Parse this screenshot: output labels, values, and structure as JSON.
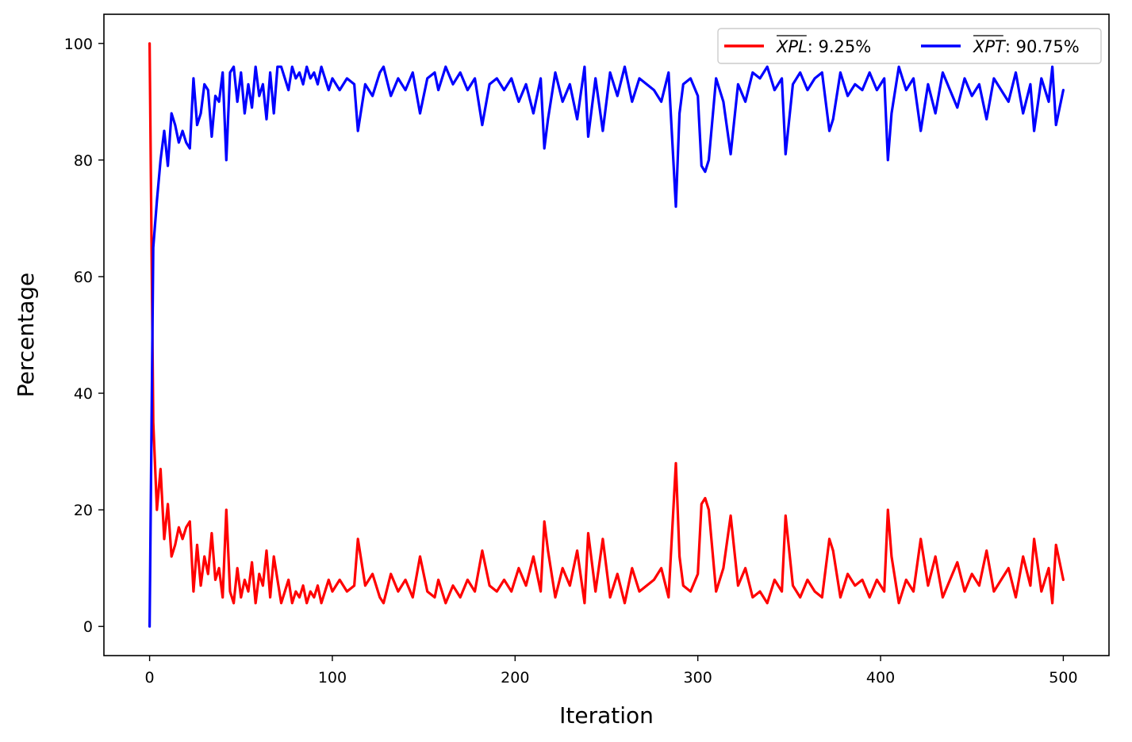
{
  "chart_data": {
    "type": "line",
    "xlabel": "Iteration",
    "ylabel": "Percentage",
    "xlim": [
      -25,
      525
    ],
    "ylim": [
      -5,
      105
    ],
    "x_ticks": [
      0,
      100,
      200,
      300,
      400,
      500
    ],
    "y_ticks": [
      0,
      20,
      40,
      60,
      80,
      100
    ],
    "grid": false,
    "legend_position": "top-right",
    "series": [
      {
        "name": "XPL",
        "legend_label": {
          "symbol": "XPL",
          "value": ": 9.25%"
        },
        "color": "#ff0000",
        "x": [
          0,
          2,
          4,
          6,
          8,
          10,
          12,
          14,
          16,
          18,
          20,
          22,
          24,
          26,
          28,
          30,
          32,
          34,
          36,
          38,
          40,
          42,
          44,
          46,
          48,
          50,
          52,
          54,
          56,
          58,
          60,
          62,
          64,
          66,
          68,
          70,
          72,
          74,
          76,
          78,
          80,
          82,
          84,
          86,
          88,
          90,
          92,
          94,
          96,
          98,
          100,
          104,
          108,
          112,
          114,
          118,
          122,
          126,
          128,
          132,
          136,
          140,
          144,
          148,
          152,
          156,
          158,
          162,
          166,
          170,
          174,
          178,
          182,
          186,
          190,
          194,
          198,
          202,
          206,
          210,
          214,
          216,
          218,
          222,
          226,
          230,
          234,
          238,
          240,
          244,
          248,
          252,
          256,
          260,
          264,
          268,
          272,
          276,
          280,
          284,
          288,
          290,
          292,
          296,
          300,
          302,
          304,
          306,
          310,
          314,
          318,
          322,
          326,
          330,
          334,
          338,
          342,
          346,
          348,
          352,
          356,
          360,
          364,
          368,
          372,
          374,
          378,
          382,
          386,
          390,
          394,
          398,
          402,
          404,
          406,
          410,
          414,
          418,
          422,
          426,
          430,
          434,
          438,
          442,
          446,
          450,
          454,
          458,
          462,
          466,
          470,
          474,
          478,
          482,
          484,
          488,
          492,
          494,
          496,
          498,
          500
        ],
        "y": [
          100,
          35,
          20,
          27,
          15,
          21,
          12,
          14,
          17,
          15,
          17,
          18,
          6,
          14,
          7,
          12,
          9,
          16,
          8,
          10,
          5,
          20,
          6,
          4,
          10,
          5,
          8,
          6,
          11,
          4,
          9,
          7,
          13,
          5,
          12,
          8,
          4,
          6,
          8,
          4,
          6,
          5,
          7,
          4,
          6,
          5,
          7,
          4,
          6,
          8,
          6,
          8,
          6,
          7,
          15,
          7,
          9,
          5,
          4,
          9,
          6,
          8,
          5,
          12,
          6,
          5,
          8,
          4,
          7,
          5,
          8,
          6,
          13,
          7,
          6,
          8,
          6,
          10,
          7,
          12,
          6,
          18,
          13,
          5,
          10,
          7,
          13,
          4,
          16,
          6,
          15,
          5,
          9,
          4,
          10,
          6,
          7,
          8,
          10,
          5,
          28,
          12,
          7,
          6,
          9,
          21,
          22,
          20,
          6,
          10,
          19,
          7,
          10,
          5,
          6,
          4,
          8,
          6,
          19,
          7,
          5,
          8,
          6,
          5,
          15,
          13,
          5,
          9,
          7,
          8,
          5,
          8,
          6,
          20,
          12,
          4,
          8,
          6,
          15,
          7,
          12,
          5,
          8,
          11,
          6,
          9,
          7,
          13,
          6,
          8,
          10,
          5,
          12,
          7,
          15,
          6,
          10,
          4,
          14,
          11,
          8
        ],
        "mean_label": "9.25%"
      },
      {
        "name": "XPT",
        "legend_label": {
          "symbol": "XPT",
          "value": ": 90.75%"
        },
        "color": "#0000ff",
        "x": [
          0,
          2,
          4,
          6,
          8,
          10,
          12,
          14,
          16,
          18,
          20,
          22,
          24,
          26,
          28,
          30,
          32,
          34,
          36,
          38,
          40,
          42,
          44,
          46,
          48,
          50,
          52,
          54,
          56,
          58,
          60,
          62,
          64,
          66,
          68,
          70,
          72,
          74,
          76,
          78,
          80,
          82,
          84,
          86,
          88,
          90,
          92,
          94,
          96,
          98,
          100,
          104,
          108,
          112,
          114,
          118,
          122,
          126,
          128,
          132,
          136,
          140,
          144,
          148,
          152,
          156,
          158,
          162,
          166,
          170,
          174,
          178,
          182,
          186,
          190,
          194,
          198,
          202,
          206,
          210,
          214,
          216,
          218,
          222,
          226,
          230,
          234,
          238,
          240,
          244,
          248,
          252,
          256,
          260,
          264,
          268,
          272,
          276,
          280,
          284,
          288,
          290,
          292,
          296,
          300,
          302,
          304,
          306,
          310,
          314,
          318,
          322,
          326,
          330,
          334,
          338,
          342,
          346,
          348,
          352,
          356,
          360,
          364,
          368,
          372,
          374,
          378,
          382,
          386,
          390,
          394,
          398,
          402,
          404,
          406,
          410,
          414,
          418,
          422,
          426,
          430,
          434,
          438,
          442,
          446,
          450,
          454,
          458,
          462,
          466,
          470,
          474,
          478,
          482,
          484,
          488,
          492,
          494,
          496,
          498,
          500
        ],
        "y": [
          0,
          65,
          73,
          80,
          85,
          79,
          88,
          86,
          83,
          85,
          83,
          82,
          94,
          86,
          88,
          93,
          92,
          84,
          91,
          90,
          95,
          80,
          95,
          96,
          90,
          95,
          88,
          93,
          89,
          96,
          91,
          93,
          87,
          95,
          88,
          96,
          96,
          94,
          92,
          96,
          94,
          95,
          93,
          96,
          94,
          95,
          93,
          96,
          94,
          92,
          94,
          92,
          94,
          93,
          85,
          93,
          91,
          95,
          96,
          91,
          94,
          92,
          95,
          88,
          94,
          95,
          92,
          96,
          93,
          95,
          92,
          94,
          86,
          93,
          94,
          92,
          94,
          90,
          93,
          88,
          94,
          82,
          87,
          95,
          90,
          93,
          87,
          96,
          84,
          94,
          85,
          95,
          91,
          96,
          90,
          94,
          93,
          92,
          90,
          95,
          72,
          88,
          93,
          94,
          91,
          79,
          78,
          80,
          94,
          90,
          81,
          93,
          90,
          95,
          94,
          96,
          92,
          94,
          81,
          93,
          95,
          92,
          94,
          95,
          85,
          87,
          95,
          91,
          93,
          92,
          95,
          92,
          94,
          80,
          88,
          96,
          92,
          94,
          85,
          93,
          88,
          95,
          92,
          89,
          94,
          91,
          93,
          87,
          94,
          92,
          90,
          95,
          88,
          93,
          85,
          94,
          90,
          96,
          86,
          89,
          92
        ]
      }
    ]
  }
}
